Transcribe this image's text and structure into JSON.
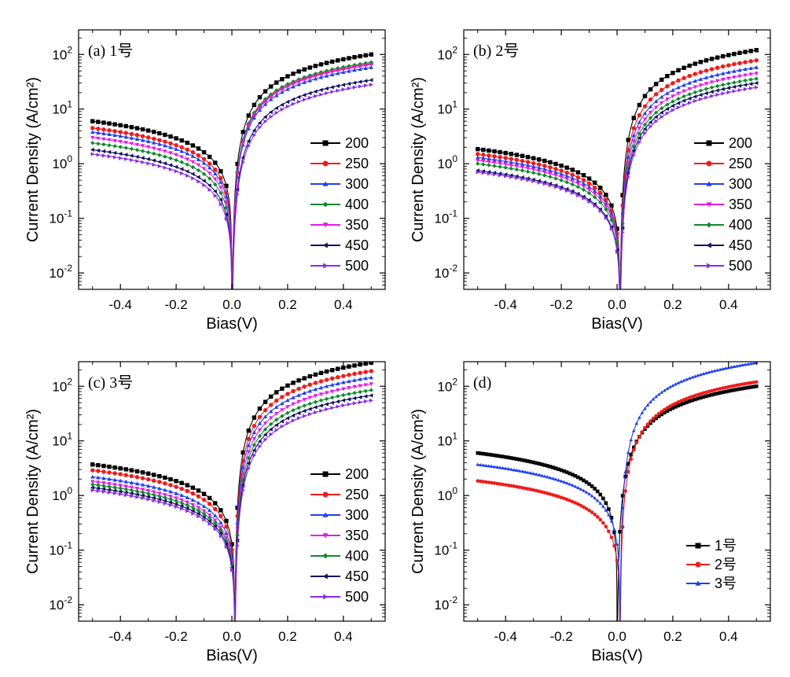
{
  "chart_data": [
    {
      "type": "line",
      "panel_label": "(a) 1号",
      "xlabel": "Bias(V)",
      "ylabel": "Current Density (A/cm²)",
      "xlim": [
        -0.55,
        0.55
      ],
      "ylim_log10": [
        -2.3,
        2.45
      ],
      "xticks": [
        "-0.4",
        "-0.2",
        "0.0",
        "0.2",
        "0.4"
      ],
      "legend_position": "right",
      "series": [
        {
          "name": "200",
          "jf": 6.0,
          "jr": 100,
          "v0": 0.0
        },
        {
          "name": "250",
          "jf": 4.5,
          "jr": 68,
          "v0": 0.0
        },
        {
          "name": "300",
          "jf": 3.8,
          "jr": 58,
          "v0": 0.0
        },
        {
          "name": "400",
          "jf": 2.4,
          "jr": 72,
          "v0": 0.0
        },
        {
          "name": "350",
          "jf": 3.0,
          "jr": 65,
          "v0": 0.0
        },
        {
          "name": "450",
          "jf": 1.8,
          "jr": 34,
          "v0": 0.0
        },
        {
          "name": "500",
          "jf": 1.5,
          "jr": 28,
          "v0": 0.0
        }
      ]
    },
    {
      "type": "line",
      "panel_label": "(b) 2号",
      "xlabel": "Bias(V)",
      "ylabel": "Current Density (A/cm²)",
      "xlim": [
        -0.55,
        0.55
      ],
      "ylim_log10": [
        -2.3,
        2.45
      ],
      "xticks": [
        "-0.4",
        "-0.2",
        "0.0",
        "0.2",
        "0.4"
      ],
      "legend_position": "right",
      "series": [
        {
          "name": "200",
          "jf": 1.85,
          "jr": 120,
          "v0": 0.01
        },
        {
          "name": "250",
          "jf": 1.5,
          "jr": 78,
          "v0": 0.01
        },
        {
          "name": "300",
          "jf": 1.3,
          "jr": 58,
          "v0": 0.01
        },
        {
          "name": "350",
          "jf": 1.15,
          "jr": 45,
          "v0": 0.01
        },
        {
          "name": "400",
          "jf": 1.0,
          "jr": 36,
          "v0": 0.01
        },
        {
          "name": "450",
          "jf": 0.75,
          "jr": 30,
          "v0": 0.01
        },
        {
          "name": "500",
          "jf": 0.7,
          "jr": 25,
          "v0": 0.01
        }
      ]
    },
    {
      "type": "line",
      "panel_label": "(c) 3号",
      "xlabel": "Bias(V)",
      "ylabel": "Current Density (A/cm²)",
      "xlim": [
        -0.55,
        0.55
      ],
      "ylim_log10": [
        -2.3,
        2.45
      ],
      "xticks": [
        "-0.4",
        "-0.2",
        "0.0",
        "0.2",
        "0.4"
      ],
      "legend_position": "right",
      "series": [
        {
          "name": "200",
          "jf": 3.7,
          "jr": 270,
          "v0": 0.01
        },
        {
          "name": "250",
          "jf": 2.9,
          "jr": 190,
          "v0": 0.01
        },
        {
          "name": "300",
          "jf": 2.2,
          "jr": 145,
          "v0": 0.01
        },
        {
          "name": "350",
          "jf": 1.8,
          "jr": 110,
          "v0": 0.01
        },
        {
          "name": "400",
          "jf": 1.6,
          "jr": 85,
          "v0": 0.01
        },
        {
          "name": "450",
          "jf": 1.4,
          "jr": 68,
          "v0": 0.01
        },
        {
          "name": "500",
          "jf": 1.25,
          "jr": 55,
          "v0": 0.01
        }
      ]
    },
    {
      "type": "line",
      "panel_label": "(d)",
      "xlabel": "Bias(V)",
      "ylabel": "Current Density (A/cm²)",
      "xlim": [
        -0.55,
        0.55
      ],
      "ylim_log10": [
        -2.3,
        2.45
      ],
      "xticks": [
        "-0.4",
        "-0.2",
        "0.0",
        "0.2",
        "0.4"
      ],
      "legend_position": "bottom-right",
      "series": [
        {
          "name": "1号",
          "jf": 6.0,
          "jr": 100,
          "v0": 0.0
        },
        {
          "name": "2号",
          "jf": 1.85,
          "jr": 120,
          "v0": 0.01
        },
        {
          "name": "3号",
          "jf": 3.7,
          "jr": 270,
          "v0": 0.01
        }
      ]
    }
  ],
  "colors": {
    "200": "#000000",
    "250": "#ee1c1c",
    "300": "#1f3ff0",
    "350": "#e619e6",
    "400": "#118a2c",
    "450": "#10125e",
    "500": "#8a2be2",
    "1号": "#000000",
    "2号": "#ee1c1c",
    "3号": "#1f3ff0",
    "axis": "#000000",
    "background": "#ffffff"
  }
}
